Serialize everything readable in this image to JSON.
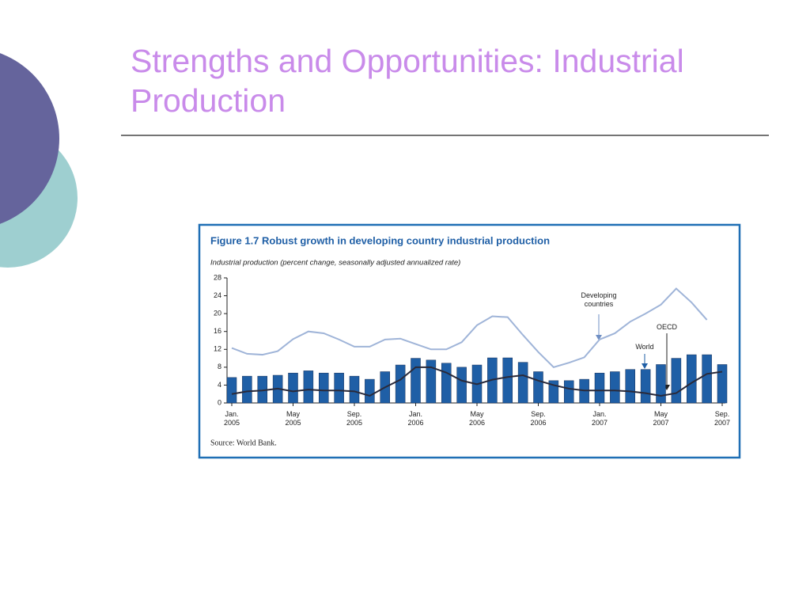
{
  "slide_title": "Strengths and Opportunities: Industrial Production",
  "chart_data": {
    "type": "bar_line",
    "title": "Figure 1.7  Robust growth in developing country industrial production",
    "subtitle": "Industrial production (percent change, seasonally adjusted annualized rate)",
    "source": "Source: World Bank.",
    "categories": [
      "Jan. 2005",
      null,
      null,
      null,
      "May 2005",
      null,
      null,
      null,
      "Sep. 2005",
      null,
      null,
      null,
      "Jan. 2006",
      null,
      null,
      null,
      "May 2006",
      null,
      null,
      null,
      "Sep. 2006",
      null,
      null,
      null,
      "Jan. 2007",
      null,
      null,
      null,
      "May 2007",
      null,
      null,
      null,
      "Sep. 2007"
    ],
    "series": [
      {
        "name": "World",
        "kind": "bar",
        "color": "#1f5fa6",
        "values": [
          5.7,
          6,
          6,
          6.2,
          6.7,
          7.2,
          6.7,
          6.7,
          6,
          5.3,
          7,
          8.5,
          10,
          9.6,
          8.9,
          8,
          8.5,
          10.1,
          10.1,
          9.1,
          7,
          5,
          5,
          5.3,
          6.7,
          7,
          7.5,
          7.5,
          8.6,
          10,
          10.8,
          10.8,
          8.6
        ]
      },
      {
        "name": "Developing countries",
        "kind": "line",
        "color": "#9fb4d8",
        "values": [
          12.3,
          11,
          10.8,
          11.6,
          14.3,
          16,
          15.6,
          14.2,
          12.6,
          12.6,
          14.2,
          14.4,
          13.2,
          12,
          12,
          13.6,
          17.4,
          19.4,
          19.2,
          15.2,
          11.4,
          8,
          9,
          10.2,
          14.2,
          15.6,
          18.2,
          20,
          22,
          25.6,
          22.5,
          18.6,
          null
        ]
      },
      {
        "name": "OECD",
        "kind": "line",
        "color": "#2a2a3a",
        "values": [
          2,
          2.6,
          2.8,
          3.2,
          2.6,
          3,
          2.8,
          2.8,
          2.6,
          1.6,
          3.5,
          5.2,
          8,
          8,
          6.8,
          5,
          4.2,
          5.2,
          5.8,
          6.2,
          5,
          4,
          3.2,
          2.8,
          2.8,
          2.8,
          2.6,
          2.2,
          1.6,
          2.2,
          4.5,
          6.5,
          7
        ]
      }
    ],
    "ylim": [
      0,
      28
    ],
    "yticks": [
      0,
      4,
      8,
      12,
      16,
      20,
      24,
      28
    ]
  }
}
